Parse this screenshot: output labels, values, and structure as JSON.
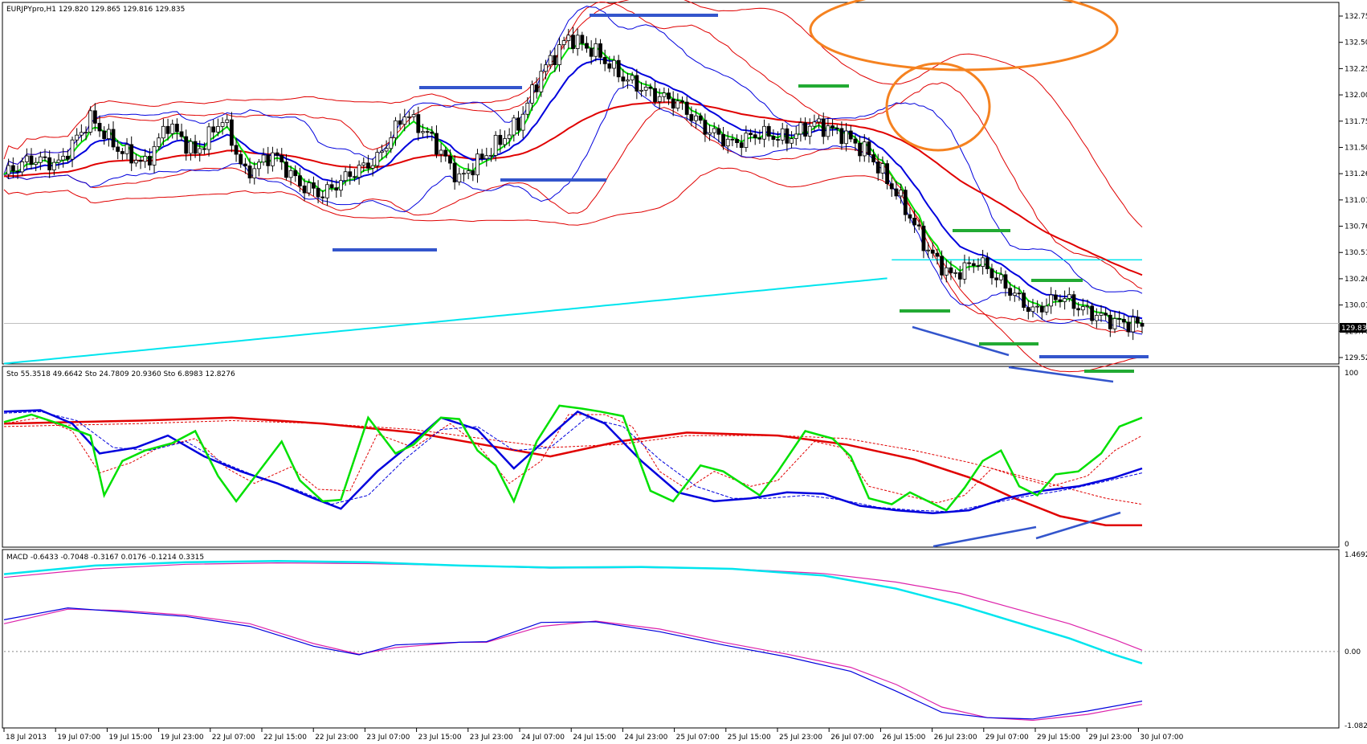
{
  "colors": {
    "bg": "#ffffff",
    "frame": "#000000",
    "grid_price": "#c0c0c0",
    "bull": "#ffffff",
    "bear": "#000000",
    "ma_green": "#00e000",
    "ma_blue": "#0000dd",
    "ma_red": "#e00000",
    "ma_cyan": "#00e5ee",
    "env_red": "#e00000",
    "bb_blue": "#0000dd",
    "level_blue": "#3355cc",
    "level_green": "#22aa33",
    "circle": "#f58220",
    "stoch_green": "#00e000",
    "stoch_blue": "#0000dd",
    "stoch_red": "#e00000",
    "macd_cyan": "#00e5ee",
    "macd_pink": "#dd22aa",
    "macd_blue": "#0000dd"
  },
  "panels": {
    "price": {
      "header": "EURJPYpro,H1  129.820 129.865 129.816 129.835"
    },
    "stoch": {
      "header": "Sto 55.3518 49.6642   Sto 24.7809 20.9360   Sto 6.8983 12.8276"
    },
    "macd": {
      "header": "MACD -0.6433 -0.7048 -0.3167 0.0176 -0.1214 0.3315"
    }
  },
  "current_price": "129.835",
  "price_axis": [
    "132.750",
    "132.500",
    "132.250",
    "132.005",
    "131.755",
    "131.505",
    "131.260",
    "131.010",
    "130.760",
    "130.510",
    "130.265",
    "130.015",
    "129.765",
    "129.520"
  ],
  "stoch_axis": [
    "100",
    "0"
  ],
  "macd_axis": [
    "1.4692",
    "0.00",
    "-1.0828"
  ],
  "time_axis": [
    "18 Jul 2013",
    "19 Jul 07:00",
    "19 Jul 15:00",
    "19 Jul 23:00",
    "22 Jul 07:00",
    "22 Jul 15:00",
    "22 Jul 23:00",
    "23 Jul 07:00",
    "23 Jul 15:00",
    "23 Jul 23:00",
    "24 Jul 07:00",
    "24 Jul 15:00",
    "24 Jul 23:00",
    "25 Jul 07:00",
    "25 Jul 15:00",
    "25 Jul 23:00",
    "26 Jul 07:00",
    "26 Jul 15:00",
    "26 Jul 23:00",
    "29 Jul 07:00",
    "29 Jul 15:00",
    "29 Jul 23:00",
    "30 Jul 07:00"
  ],
  "chart_data": {
    "type": "line",
    "symbol": "EURJPYpro",
    "timeframe": "H1",
    "ohlc_last": {
      "open": 129.82,
      "high": 129.865,
      "low": 129.816,
      "close": 129.835
    },
    "price_ylim": [
      129.46,
      132.95
    ],
    "close_path": [
      [
        0,
        131.3
      ],
      [
        6,
        131.45
      ],
      [
        12,
        131.4
      ],
      [
        19,
        131.85
      ],
      [
        25,
        131.55
      ],
      [
        31,
        131.4
      ],
      [
        36,
        131.8
      ],
      [
        42,
        131.5
      ],
      [
        48,
        131.85
      ],
      [
        53,
        131.3
      ],
      [
        59,
        131.5
      ],
      [
        65,
        131.2
      ],
      [
        70,
        131.1
      ],
      [
        76,
        131.3
      ],
      [
        82,
        131.45
      ],
      [
        88,
        131.9
      ],
      [
        94,
        131.65
      ],
      [
        100,
        131.25
      ],
      [
        106,
        131.5
      ],
      [
        113,
        131.8
      ],
      [
        118,
        132.3
      ],
      [
        124,
        132.65
      ],
      [
        130,
        132.5
      ],
      [
        136,
        132.25
      ],
      [
        142,
        132.1
      ],
      [
        148,
        132.0
      ],
      [
        154,
        131.75
      ],
      [
        160,
        131.6
      ],
      [
        166,
        131.7
      ],
      [
        172,
        131.65
      ],
      [
        178,
        131.8
      ],
      [
        184,
        131.7
      ],
      [
        190,
        131.5
      ],
      [
        197,
        131.05
      ],
      [
        203,
        130.55
      ],
      [
        208,
        130.3
      ],
      [
        214,
        130.45
      ],
      [
        220,
        130.2
      ],
      [
        226,
        129.95
      ],
      [
        232,
        130.1
      ],
      [
        238,
        129.95
      ],
      [
        244,
        129.85
      ],
      [
        250,
        129.82
      ]
    ],
    "stoch": {
      "ylim": [
        0,
        100
      ],
      "fast_main": [
        [
          0,
          81
        ],
        [
          6,
          86
        ],
        [
          12,
          80
        ],
        [
          19,
          72
        ],
        [
          22,
          32
        ],
        [
          26,
          55
        ],
        [
          31,
          62
        ],
        [
          37,
          67
        ],
        [
          42,
          75
        ],
        [
          47,
          45
        ],
        [
          51,
          28
        ],
        [
          56,
          48
        ],
        [
          61,
          68
        ],
        [
          65,
          42
        ],
        [
          70,
          28
        ],
        [
          74,
          29
        ],
        [
          80,
          84
        ],
        [
          86,
          60
        ],
        [
          90,
          66
        ],
        [
          96,
          84
        ],
        [
          100,
          83
        ],
        [
          104,
          62
        ],
        [
          108,
          52
        ],
        [
          112,
          28
        ],
        [
          117,
          68
        ],
        [
          122,
          92
        ],
        [
          127,
          90
        ],
        [
          131,
          88
        ],
        [
          136,
          85
        ],
        [
          142,
          35
        ],
        [
          147,
          28
        ],
        [
          153,
          52
        ],
        [
          158,
          48
        ],
        [
          162,
          40
        ],
        [
          166,
          32
        ],
        [
          170,
          48
        ],
        [
          176,
          75
        ],
        [
          182,
          70
        ],
        [
          186,
          58
        ],
        [
          190,
          30
        ],
        [
          195,
          26
        ],
        [
          199,
          34
        ],
        [
          203,
          28
        ],
        [
          207,
          22
        ],
        [
          211,
          37
        ],
        [
          215,
          55
        ],
        [
          219,
          62
        ],
        [
          223,
          38
        ],
        [
          227,
          32
        ],
        [
          231,
          46
        ],
        [
          236,
          48
        ],
        [
          241,
          60
        ],
        [
          245,
          78
        ],
        [
          250,
          84
        ]
      ],
      "fast_signal": [
        [
          0,
          80
        ],
        [
          8,
          84
        ],
        [
          15,
          75
        ],
        [
          21,
          47
        ],
        [
          28,
          54
        ],
        [
          34,
          64
        ],
        [
          42,
          70
        ],
        [
          49,
          50
        ],
        [
          55,
          40
        ],
        [
          63,
          51
        ],
        [
          69,
          36
        ],
        [
          76,
          35
        ],
        [
          82,
          73
        ],
        [
          90,
          64
        ],
        [
          98,
          80
        ],
        [
          104,
          66
        ],
        [
          111,
          40
        ],
        [
          118,
          55
        ],
        [
          124,
          86
        ],
        [
          132,
          86
        ],
        [
          138,
          78
        ],
        [
          144,
          48
        ],
        [
          150,
          36
        ],
        [
          156,
          48
        ],
        [
          164,
          38
        ],
        [
          170,
          42
        ],
        [
          178,
          68
        ],
        [
          184,
          64
        ],
        [
          190,
          38
        ],
        [
          198,
          32
        ],
        [
          205,
          27
        ],
        [
          211,
          32
        ],
        [
          217,
          50
        ],
        [
          223,
          44
        ],
        [
          230,
          38
        ],
        [
          238,
          45
        ],
        [
          244,
          62
        ],
        [
          250,
          72
        ]
      ],
      "mid_main": [
        [
          0,
          88
        ],
        [
          8,
          89
        ],
        [
          15,
          80
        ],
        [
          21,
          60
        ],
        [
          29,
          64
        ],
        [
          36,
          72
        ],
        [
          44,
          58
        ],
        [
          52,
          48
        ],
        [
          60,
          40
        ],
        [
          68,
          30
        ],
        [
          74,
          23
        ],
        [
          82,
          48
        ],
        [
          90,
          68
        ],
        [
          96,
          84
        ],
        [
          104,
          76
        ],
        [
          112,
          50
        ],
        [
          120,
          72
        ],
        [
          126,
          88
        ],
        [
          132,
          80
        ],
        [
          140,
          55
        ],
        [
          148,
          34
        ],
        [
          156,
          28
        ],
        [
          164,
          30
        ],
        [
          172,
          34
        ],
        [
          180,
          33
        ],
        [
          188,
          25
        ],
        [
          196,
          22
        ],
        [
          204,
          20
        ],
        [
          212,
          22
        ],
        [
          220,
          30
        ],
        [
          228,
          35
        ],
        [
          236,
          38
        ],
        [
          244,
          44
        ],
        [
          250,
          50
        ]
      ],
      "mid_signal": [
        [
          0,
          87
        ],
        [
          8,
          88
        ],
        [
          16,
          82
        ],
        [
          24,
          64
        ],
        [
          32,
          62
        ],
        [
          40,
          68
        ],
        [
          48,
          54
        ],
        [
          56,
          44
        ],
        [
          64,
          36
        ],
        [
          72,
          26
        ],
        [
          80,
          32
        ],
        [
          88,
          56
        ],
        [
          96,
          76
        ],
        [
          104,
          78
        ],
        [
          112,
          62
        ],
        [
          120,
          64
        ],
        [
          128,
          84
        ],
        [
          136,
          78
        ],
        [
          144,
          56
        ],
        [
          152,
          38
        ],
        [
          160,
          30
        ],
        [
          168,
          30
        ],
        [
          176,
          32
        ],
        [
          184,
          29
        ],
        [
          192,
          24
        ],
        [
          200,
          22
        ],
        [
          208,
          21
        ],
        [
          216,
          26
        ],
        [
          224,
          31
        ],
        [
          232,
          35
        ],
        [
          240,
          40
        ],
        [
          250,
          47
        ]
      ],
      "slow_main": [
        [
          0,
          80
        ],
        [
          30,
          82
        ],
        [
          50,
          84
        ],
        [
          70,
          80
        ],
        [
          90,
          74
        ],
        [
          105,
          66
        ],
        [
          120,
          58
        ],
        [
          135,
          68
        ],
        [
          150,
          74
        ],
        [
          170,
          72
        ],
        [
          185,
          66
        ],
        [
          200,
          56
        ],
        [
          212,
          44
        ],
        [
          222,
          30
        ],
        [
          232,
          18
        ],
        [
          242,
          12
        ],
        [
          250,
          12
        ]
      ],
      "slow_signal": [
        [
          0,
          78
        ],
        [
          30,
          80
        ],
        [
          50,
          82
        ],
        [
          70,
          80
        ],
        [
          90,
          76
        ],
        [
          105,
          70
        ],
        [
          120,
          64
        ],
        [
          135,
          66
        ],
        [
          150,
          72
        ],
        [
          170,
          72
        ],
        [
          185,
          70
        ],
        [
          200,
          62
        ],
        [
          212,
          54
        ],
        [
          222,
          46
        ],
        [
          232,
          38
        ],
        [
          242,
          30
        ],
        [
          250,
          26
        ]
      ]
    },
    "macd": {
      "ylim": [
        -1.0828,
        1.4692
      ],
      "long_main": [
        [
          0,
          1.17
        ],
        [
          20,
          1.3
        ],
        [
          40,
          1.35
        ],
        [
          60,
          1.37
        ],
        [
          80,
          1.35
        ],
        [
          100,
          1.3
        ],
        [
          120,
          1.27
        ],
        [
          140,
          1.28
        ],
        [
          160,
          1.25
        ],
        [
          180,
          1.15
        ],
        [
          196,
          0.95
        ],
        [
          210,
          0.7
        ],
        [
          222,
          0.45
        ],
        [
          234,
          0.2
        ],
        [
          244,
          -0.05
        ],
        [
          250,
          -0.18
        ]
      ],
      "long_signal": [
        [
          0,
          1.12
        ],
        [
          20,
          1.25
        ],
        [
          40,
          1.32
        ],
        [
          60,
          1.34
        ],
        [
          80,
          1.33
        ],
        [
          100,
          1.3
        ],
        [
          120,
          1.26
        ],
        [
          140,
          1.27
        ],
        [
          160,
          1.25
        ],
        [
          180,
          1.18
        ],
        [
          196,
          1.05
        ],
        [
          210,
          0.88
        ],
        [
          222,
          0.65
        ],
        [
          234,
          0.42
        ],
        [
          244,
          0.18
        ],
        [
          250,
          0.02
        ]
      ],
      "short_main": [
        [
          0,
          0.48
        ],
        [
          14,
          0.66
        ],
        [
          26,
          0.6
        ],
        [
          40,
          0.53
        ],
        [
          54,
          0.38
        ],
        [
          68,
          0.08
        ],
        [
          78,
          -0.05
        ],
        [
          86,
          0.1
        ],
        [
          100,
          0.14
        ],
        [
          106,
          0.15
        ],
        [
          118,
          0.44
        ],
        [
          130,
          0.45
        ],
        [
          144,
          0.3
        ],
        [
          158,
          0.1
        ],
        [
          172,
          -0.08
        ],
        [
          186,
          -0.3
        ],
        [
          196,
          -0.6
        ],
        [
          206,
          -0.92
        ],
        [
          216,
          -1.0
        ],
        [
          226,
          -1.02
        ],
        [
          238,
          -0.9
        ],
        [
          250,
          -0.75
        ]
      ],
      "short_signal": [
        [
          0,
          0.42
        ],
        [
          14,
          0.64
        ],
        [
          26,
          0.62
        ],
        [
          40,
          0.55
        ],
        [
          54,
          0.42
        ],
        [
          68,
          0.12
        ],
        [
          78,
          -0.04
        ],
        [
          86,
          0.06
        ],
        [
          100,
          0.14
        ],
        [
          106,
          0.14
        ],
        [
          118,
          0.38
        ],
        [
          130,
          0.46
        ],
        [
          144,
          0.34
        ],
        [
          158,
          0.14
        ],
        [
          172,
          -0.04
        ],
        [
          186,
          -0.24
        ],
        [
          196,
          -0.5
        ],
        [
          206,
          -0.84
        ],
        [
          216,
          -1.0
        ],
        [
          226,
          -1.04
        ],
        [
          238,
          -0.95
        ],
        [
          250,
          -0.8
        ]
      ]
    }
  }
}
